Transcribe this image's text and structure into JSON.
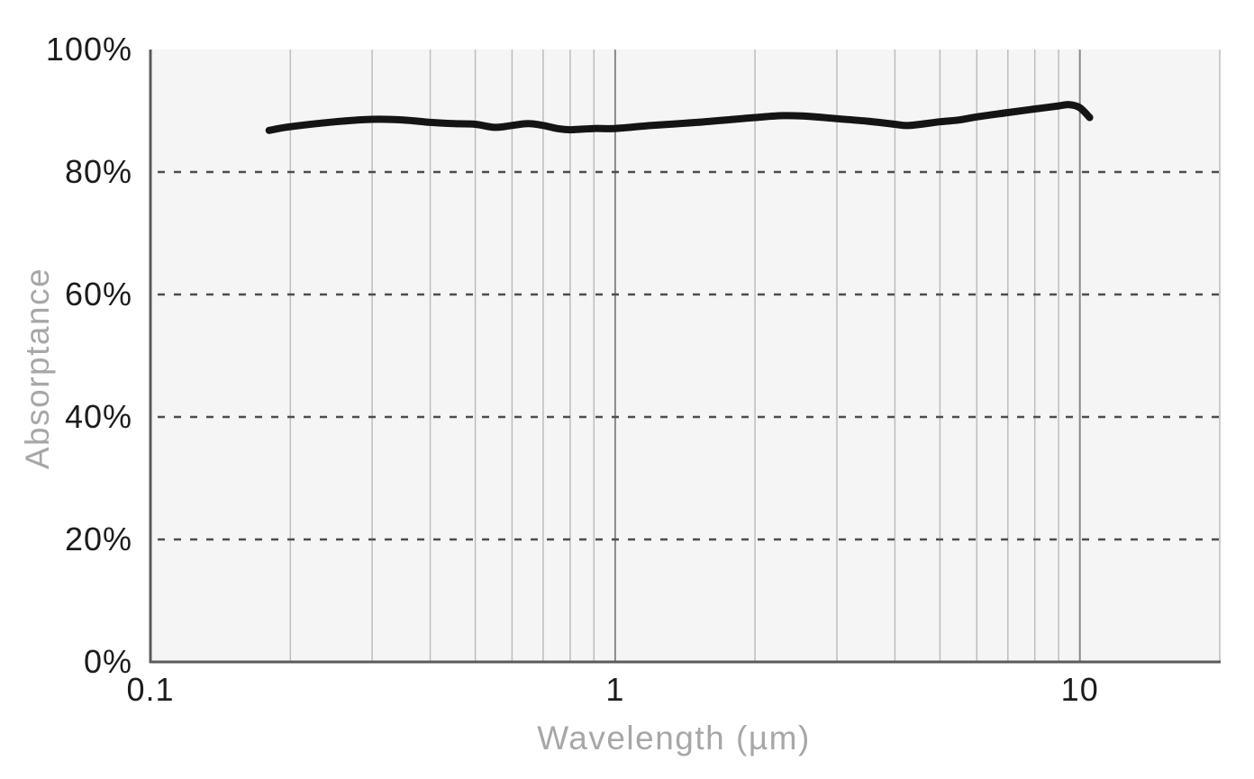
{
  "chart_data": {
    "type": "line",
    "title": "",
    "xlabel": "Wavelength (µm)",
    "ylabel": "Absorptance",
    "x_scale": "log",
    "xlim": [
      0.1,
      20
    ],
    "ylim": [
      0,
      100
    ],
    "grid": true,
    "legend": "none",
    "x_ticks": [
      {
        "value": 0.1,
        "label": "0.1"
      },
      {
        "value": 1,
        "label": "1"
      },
      {
        "value": 10,
        "label": "10"
      }
    ],
    "x_minor_gridlines": [
      0.2,
      0.3,
      0.4,
      0.5,
      0.6,
      0.7,
      0.8,
      0.9,
      2,
      3,
      4,
      5,
      6,
      7,
      8,
      9,
      20
    ],
    "x_major_gridlines": [
      1,
      10
    ],
    "y_ticks": [
      {
        "value": 0,
        "label": "0%"
      },
      {
        "value": 20,
        "label": "20%"
      },
      {
        "value": 40,
        "label": "40%"
      },
      {
        "value": 60,
        "label": "60%"
      },
      {
        "value": 80,
        "label": "80%"
      },
      {
        "value": 100,
        "label": "100%"
      }
    ],
    "y_dashed_gridlines": [
      20,
      40,
      60,
      80
    ],
    "series": [
      {
        "name": "Absorptance",
        "color": "#141414",
        "stroke_width": 8,
        "x": [
          0.18,
          0.2,
          0.25,
          0.3,
          0.35,
          0.4,
          0.45,
          0.5,
          0.55,
          0.6,
          0.65,
          0.7,
          0.75,
          0.8,
          0.9,
          1.0,
          1.2,
          1.5,
          1.8,
          2.0,
          2.3,
          2.6,
          3.0,
          3.5,
          4.0,
          4.3,
          5.0,
          5.5,
          6.0,
          7.0,
          8.0,
          9.0,
          9.5,
          10.0,
          10.5
        ],
        "y": [
          86.8,
          87.4,
          88.2,
          88.6,
          88.5,
          88.1,
          87.9,
          87.8,
          87.3,
          87.6,
          87.9,
          87.6,
          87.1,
          86.9,
          87.1,
          87.1,
          87.6,
          88.1,
          88.6,
          88.9,
          89.2,
          89.1,
          88.7,
          88.3,
          87.8,
          87.6,
          88.2,
          88.5,
          89.0,
          89.7,
          90.3,
          90.8,
          91.0,
          90.5,
          88.9
        ]
      }
    ],
    "colors": {
      "page_background": "#ffffff",
      "plot_background": "#f5f5f5",
      "axis_line": "#5b5b5b",
      "minor_gridline": "#bdbdbd",
      "major_gridline": "#898989",
      "dashed_gridline": "#4d4d4d",
      "tick_label": "#1c1c1c",
      "axis_title": "#a7a7a7",
      "series_line": "#141414"
    }
  }
}
